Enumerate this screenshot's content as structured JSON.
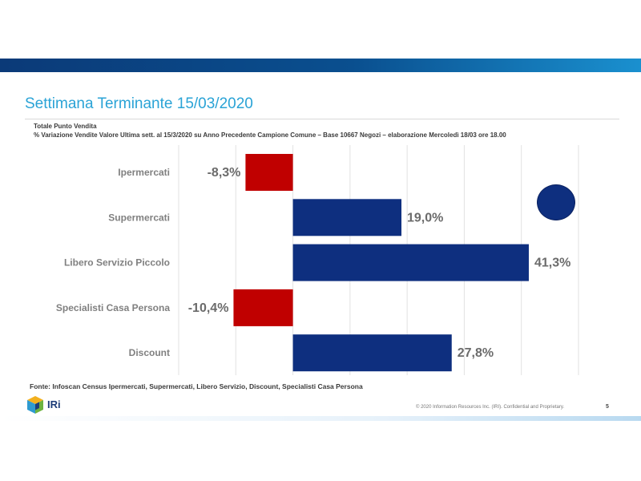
{
  "slide": {
    "title": "Settimana Terminante 15/03/2020",
    "subtitle_line1": "Totale Punto Vendita",
    "subtitle_line2": "% Variazione Vendite Valore Ultima sett. al 15/3/2020 su Anno Precedente Campione Comune – Base 10667 Negozi – elaborazione Mercoledì 18/03 ore 18.00",
    "source": "Fonte: Infoscan Census Ipermercati, Supermercati, Libero Servizio, Discount, Specialisti Casa Persona",
    "logo_text": "IRi",
    "copyright": "© 2020  Information Resources Inc. (IRI). Confidential and Proprietary.",
    "page_number": "5"
  },
  "colors": {
    "positive": "#0e2f7f",
    "negative": "#c00000",
    "title": "#2aa3d6",
    "band": "#0b3a78",
    "gridline": "#e2e2e2"
  },
  "chart_data": {
    "type": "bar",
    "orientation": "horizontal",
    "title": "% Variazione Vendite Valore",
    "categories": [
      "Ipermercati",
      "Supermercati",
      "Libero Servizio Piccolo",
      "Specialisti Casa Persona",
      "Discount"
    ],
    "values": [
      -8.3,
      19.0,
      41.3,
      -10.4,
      27.8
    ],
    "value_labels": [
      "-8,3%",
      "19,0%",
      "41,3%",
      "-10,4%",
      "27,8%"
    ],
    "xlim": [
      -20,
      50
    ],
    "grid": true,
    "xlabel": "",
    "ylabel": ""
  }
}
